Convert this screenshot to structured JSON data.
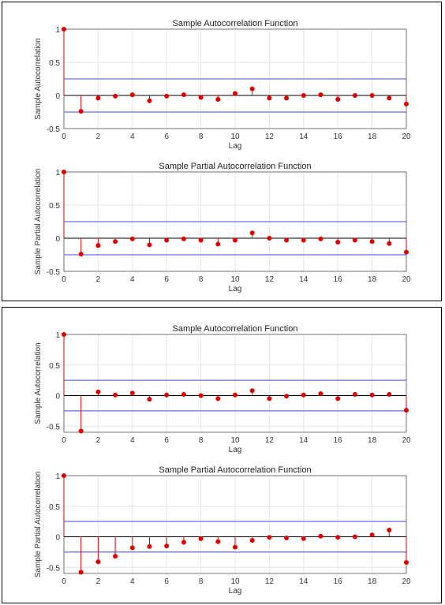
{
  "chart_data": [
    {
      "type": "stem",
      "title": "Sample Autocorrelation Function",
      "xlabel": "Lag",
      "ylabel": "Sample Autocorrelation",
      "xlim": [
        0,
        20
      ],
      "ylim": [
        -0.5,
        1
      ],
      "x_ticks": [
        0,
        2,
        4,
        6,
        8,
        10,
        12,
        14,
        16,
        18,
        20
      ],
      "y_ticks": [
        -0.5,
        0,
        0.5,
        1
      ],
      "confidence_bounds": [
        0.25,
        -0.25
      ],
      "grid": true,
      "lags": [
        0,
        1,
        2,
        3,
        4,
        5,
        6,
        7,
        8,
        9,
        10,
        11,
        12,
        13,
        14,
        15,
        16,
        17,
        18,
        19,
        20
      ],
      "values": [
        1,
        -0.24,
        -0.04,
        -0.01,
        0.01,
        -0.08,
        -0.01,
        0.01,
        -0.03,
        -0.06,
        0.03,
        0.1,
        -0.04,
        -0.04,
        0.0,
        0.01,
        -0.06,
        0.0,
        0.0,
        -0.04,
        -0.13
      ]
    },
    {
      "type": "stem",
      "title": "Sample Partial Autocorrelation Function",
      "xlabel": "Lag",
      "ylabel": "Sample Partial Autocorrelation",
      "xlim": [
        0,
        20
      ],
      "ylim": [
        -0.5,
        1
      ],
      "x_ticks": [
        0,
        2,
        4,
        6,
        8,
        10,
        12,
        14,
        16,
        18,
        20
      ],
      "y_ticks": [
        -0.5,
        0,
        0.5,
        1
      ],
      "confidence_bounds": [
        0.25,
        -0.25
      ],
      "grid": true,
      "lags": [
        0,
        1,
        2,
        3,
        4,
        5,
        6,
        7,
        8,
        9,
        10,
        11,
        12,
        13,
        14,
        15,
        16,
        17,
        18,
        19,
        20
      ],
      "values": [
        1,
        -0.24,
        -0.11,
        -0.05,
        -0.01,
        -0.1,
        -0.03,
        -0.01,
        -0.03,
        -0.09,
        -0.03,
        0.08,
        0.0,
        -0.03,
        -0.03,
        -0.01,
        -0.06,
        -0.03,
        -0.05,
        -0.08,
        -0.21
      ]
    },
    {
      "type": "stem",
      "title": "Sample Autocorrelation Function",
      "xlabel": "Lag",
      "ylabel": "Sample Autocorrelation",
      "xlim": [
        0,
        20
      ],
      "ylim": [
        -0.6,
        1
      ],
      "x_ticks": [
        0,
        2,
        4,
        6,
        8,
        10,
        12,
        14,
        16,
        18,
        20
      ],
      "y_ticks": [
        -0.5,
        0,
        0.5,
        1
      ],
      "confidence_bounds": [
        0.25,
        -0.25
      ],
      "grid": true,
      "lags": [
        0,
        1,
        2,
        3,
        4,
        5,
        6,
        7,
        8,
        9,
        10,
        11,
        12,
        13,
        14,
        15,
        16,
        17,
        18,
        19,
        20
      ],
      "values": [
        1,
        -0.58,
        0.06,
        0.01,
        0.04,
        -0.06,
        0.01,
        0.02,
        0.0,
        -0.05,
        0.01,
        0.08,
        -0.05,
        -0.01,
        0.01,
        0.03,
        -0.05,
        0.02,
        0.01,
        0.02,
        -0.24
      ]
    },
    {
      "type": "stem",
      "title": "Sample Partial Autocorrelation Function",
      "xlabel": "Lag",
      "ylabel": "Sample Partial Autocorrelation",
      "xlim": [
        0,
        20
      ],
      "ylim": [
        -0.6,
        1
      ],
      "x_ticks": [
        0,
        2,
        4,
        6,
        8,
        10,
        12,
        14,
        16,
        18,
        20
      ],
      "y_ticks": [
        -0.5,
        0,
        0.5,
        1
      ],
      "confidence_bounds": [
        0.25,
        -0.25
      ],
      "grid": true,
      "lags": [
        0,
        1,
        2,
        3,
        4,
        5,
        6,
        7,
        8,
        9,
        10,
        11,
        12,
        13,
        14,
        15,
        16,
        17,
        18,
        19,
        20
      ],
      "values": [
        1,
        -0.58,
        -0.41,
        -0.32,
        -0.18,
        -0.16,
        -0.15,
        -0.09,
        -0.03,
        -0.08,
        -0.17,
        -0.06,
        -0.01,
        -0.02,
        -0.03,
        0.01,
        -0.01,
        0.0,
        0.03,
        0.11,
        -0.42
      ]
    }
  ],
  "colors": {
    "stem": "#e00000",
    "marker": "#e00000",
    "bounds": "#6a6af5",
    "zero_line": "#000000",
    "grid": "#e6e6e6",
    "axis": "#555555"
  }
}
